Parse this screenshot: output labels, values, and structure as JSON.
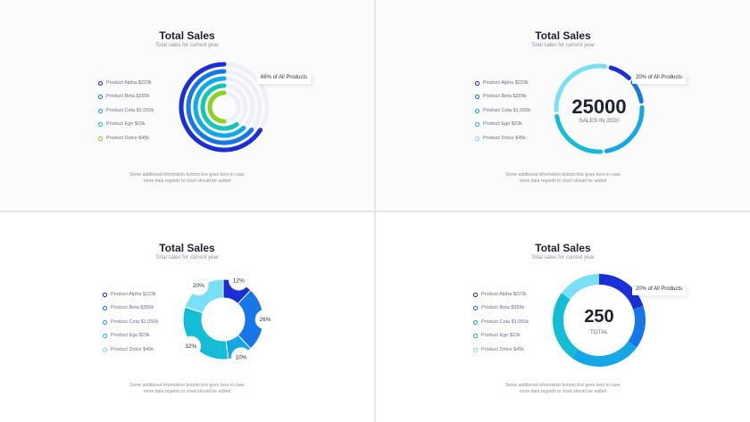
{
  "footnote": {
    "line1": "Some additional information bottom line goes here in case",
    "line2": "more data regards to chart should be added"
  },
  "legend": [
    {
      "label": "Product Alpha $223k"
    },
    {
      "label": "Product Beta $355k"
    },
    {
      "label": "Product Ceta $1,050k"
    },
    {
      "label": "Product Ego $23k"
    },
    {
      "label": "Product Dolce $45k"
    }
  ],
  "colors": {
    "series": [
      "#1a2fd8",
      "#1777e8",
      "#15a6e8",
      "#13bdd6",
      "#78dff7"
    ],
    "concentric_series": [
      "#1a2fd8",
      "#1777e8",
      "#13a9e8",
      "#16c4b8",
      "#8fd11e"
    ],
    "track": "#edf0f6"
  },
  "panels": [
    {
      "title": "Total Sales",
      "subtitle": "Total sales for current year",
      "callout": "66% of All Products"
    },
    {
      "title": "Total Sales",
      "subtitle": "Total sales for current year",
      "callout": "20% of All Products",
      "center_value": "25000",
      "center_caption": "SALES IN 2020"
    },
    {
      "title": "Total Sales",
      "subtitle": "Total sales for current year"
    },
    {
      "title": "Total Sales",
      "subtitle": "Total sales for current year",
      "callout": "20% of All Products",
      "center_value": "250",
      "center_caption": "TOTAL"
    }
  ],
  "chart_data": [
    {
      "type": "radial-bar",
      "title": "Total Sales",
      "subtitle": "Total sales for current year",
      "categories": [
        "Product Alpha",
        "Product Beta",
        "Product Ceta",
        "Product Ego",
        "Product Dolce"
      ],
      "values": [
        0.66,
        0.64,
        0.62,
        0.6,
        0.5
      ],
      "annotation": "66% of All Products"
    },
    {
      "type": "pie",
      "title": "Total Sales",
      "subtitle": "Total sales for current year",
      "categories": [
        "Product Alpha",
        "Product Beta",
        "Product Ceta",
        "Product Ego",
        "Product Dolce"
      ],
      "values": [
        10,
        10,
        25,
        25,
        30
      ],
      "center_value": "25000",
      "center_caption": "SALES IN 2020",
      "annotation": "20% of All Products"
    },
    {
      "type": "pie",
      "title": "Total Sales",
      "subtitle": "Total sales for current year",
      "categories": [
        "Product Alpha",
        "Product Beta",
        "Product Ceta",
        "Product Ego",
        "Product Dolce"
      ],
      "values": [
        12,
        26,
        10,
        32,
        20
      ],
      "labels": [
        "12%",
        "26%",
        "10%",
        "32%",
        "20%"
      ]
    },
    {
      "type": "pie",
      "title": "Total Sales",
      "subtitle": "Total sales for current year",
      "categories": [
        "Product Alpha",
        "Product Beta",
        "Product Ceta",
        "Product Ego",
        "Product Dolce"
      ],
      "values": [
        20,
        15,
        25,
        25,
        15
      ],
      "center_value": "250",
      "center_caption": "TOTAL",
      "annotation": "20% of All Products"
    }
  ]
}
